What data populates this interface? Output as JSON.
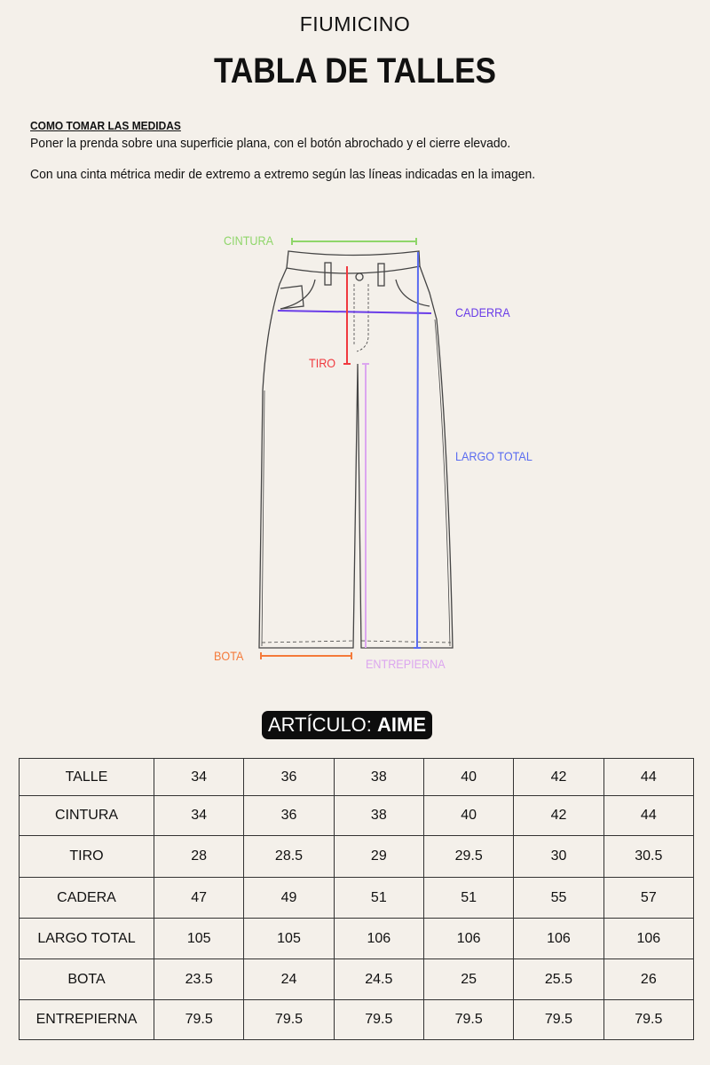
{
  "brand": "FIUMICINO",
  "title": "TABLA DE TALLES",
  "instructions": {
    "heading": "COMO TOMAR LAS MEDIDAS",
    "line1": "Poner la prenda sobre una superficie plana, con el botón abrochado y el cierre elevado.",
    "line2": "Con una cinta métrica medir de extremo a extremo según las líneas indicadas en la imagen."
  },
  "diagram": {
    "labels": {
      "cintura": "CINTURA",
      "caderra": "CADERRA",
      "tiro": "TIRO",
      "largo_total": "LARGO TOTAL",
      "bota": "BOTA",
      "entrepierna": "ENTREPIERNA"
    },
    "colors": {
      "cintura": "#8fd66a",
      "caderra": "#6a3de8",
      "tiro": "#f0393f",
      "largo_total": "#5a6cf0",
      "bota": "#f47a3a",
      "entrepierna": "#dca6ef"
    }
  },
  "article": {
    "prefix": "ARTÍCULO:",
    "name": "AIME"
  },
  "table": {
    "rows": [
      {
        "label": "TALLE",
        "values": [
          "34",
          "36",
          "38",
          "40",
          "42",
          "44"
        ]
      },
      {
        "label": "CINTURA",
        "values": [
          "34",
          "36",
          "38",
          "40",
          "42",
          "44"
        ]
      },
      {
        "label": "TIRO",
        "values": [
          "28",
          "28.5",
          "29",
          "29.5",
          "30",
          "30.5"
        ]
      },
      {
        "label": "CADERA",
        "values": [
          "47",
          "49",
          "51",
          "51",
          "55",
          "57"
        ]
      },
      {
        "label": "LARGO TOTAL",
        "values": [
          "105",
          "105",
          "106",
          "106",
          "106",
          "106"
        ]
      },
      {
        "label": "BOTA",
        "values": [
          "23.5",
          "24",
          "24.5",
          "25",
          "25.5",
          "26"
        ]
      },
      {
        "label": "ENTREPIERNA",
        "values": [
          "79.5",
          "79.5",
          "79.5",
          "79.5",
          "79.5",
          "79.5"
        ]
      }
    ]
  }
}
